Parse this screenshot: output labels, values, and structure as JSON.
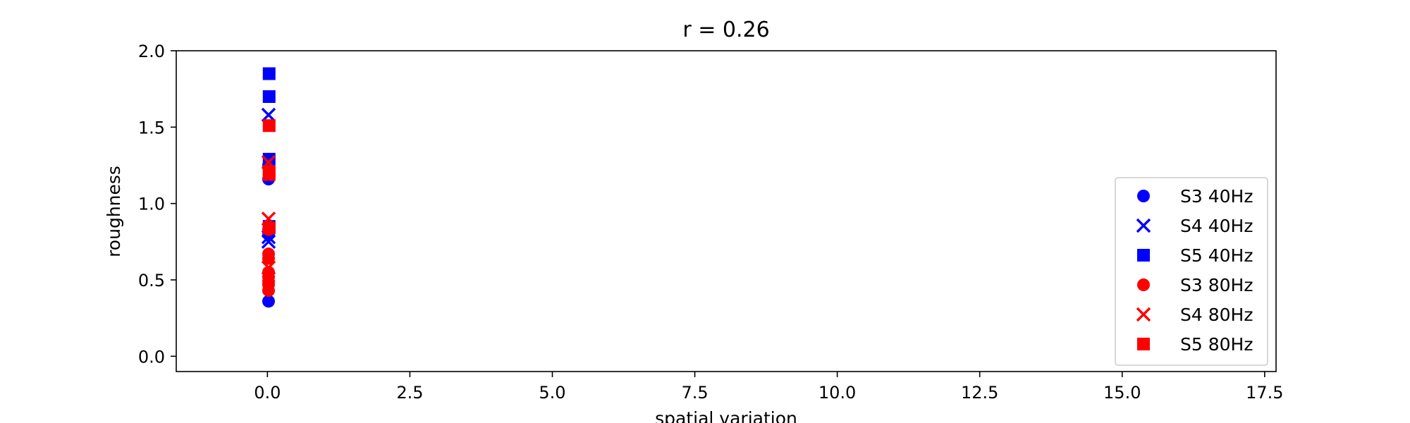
{
  "chart_data": {
    "type": "scatter",
    "title": "r = 0.26",
    "xlabel": "spatial variation",
    "ylabel": "roughness",
    "xlim": [
      -1.6,
      17.7
    ],
    "ylim": [
      -0.1,
      2.0
    ],
    "xticks": [
      "0.0",
      "2.5",
      "5.0",
      "7.5",
      "10.0",
      "12.5",
      "15.0",
      "17.5"
    ],
    "yticks": [
      "0.0",
      "0.5",
      "1.0",
      "1.5",
      "2.0"
    ],
    "grid": false,
    "legend_position": "lower right",
    "series": [
      {
        "name": "S3 40Hz",
        "color": "#0000ff",
        "marker": "circle",
        "points": [
          [
            0.02,
            0.36
          ],
          [
            0.02,
            0.8
          ],
          [
            0.02,
            0.83
          ],
          [
            0.02,
            1.16
          ],
          [
            0.02,
            1.25
          ]
        ]
      },
      {
        "name": "S4 40Hz",
        "color": "#0000ff",
        "marker": "x",
        "points": [
          [
            0.02,
            0.75
          ],
          [
            0.02,
            0.78
          ],
          [
            0.02,
            1.58
          ]
        ]
      },
      {
        "name": "S5 40Hz",
        "color": "#0000ff",
        "marker": "square",
        "points": [
          [
            0.03,
            0.85
          ],
          [
            0.03,
            1.29
          ],
          [
            0.03,
            1.7
          ],
          [
            0.03,
            1.85
          ]
        ]
      },
      {
        "name": "S3 80Hz",
        "color": "#ff0000",
        "marker": "circle",
        "points": [
          [
            0.02,
            0.43
          ],
          [
            0.02,
            0.47
          ],
          [
            0.02,
            0.49
          ],
          [
            0.02,
            0.52
          ],
          [
            0.02,
            0.55
          ],
          [
            0.02,
            0.64
          ],
          [
            0.02,
            0.67
          ],
          [
            0.02,
            0.83
          ]
        ]
      },
      {
        "name": "S4 80Hz",
        "color": "#ff0000",
        "marker": "x",
        "points": [
          [
            0.02,
            0.58
          ],
          [
            0.02,
            0.9
          ],
          [
            0.02,
            1.27
          ]
        ]
      },
      {
        "name": "S5 80Hz",
        "color": "#ff0000",
        "marker": "square",
        "points": [
          [
            0.03,
            0.84
          ],
          [
            0.03,
            1.19
          ],
          [
            0.03,
            1.21
          ],
          [
            0.03,
            1.51
          ]
        ]
      }
    ]
  }
}
